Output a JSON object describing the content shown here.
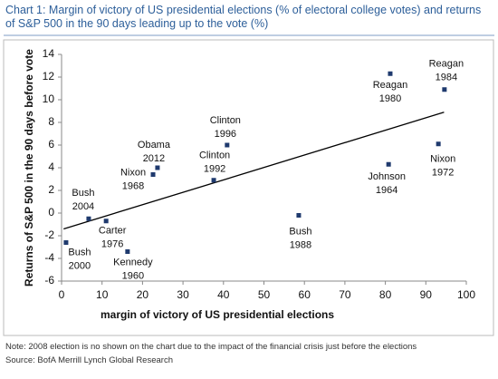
{
  "chart_data": {
    "type": "scatter",
    "title": "Chart 1: Margin of victory of US presidential elections (% of electoral college votes) and returns of S&P 500 in the 90 days leading up to the vote (%)",
    "x_label": "margin of victory of US presidential elections",
    "y_label": "Returns of S&P 500 in the 90 days before vote",
    "names": [
      "Bush",
      "Bush",
      "Carter",
      "Kennedy",
      "Nixon",
      "Obama",
      "Clinton",
      "Clinton",
      "Bush",
      "Johnson",
      "Reagan",
      "Nixon",
      "Reagan"
    ],
    "years": [
      "2000",
      "2004",
      "1976",
      "1960",
      "1968",
      "2012",
      "1992",
      "1996",
      "1988",
      "1964",
      "1980",
      "1972",
      "1984"
    ],
    "x": [
      1.1,
      6.7,
      11,
      16.3,
      22.6,
      23.7,
      37.6,
      40.9,
      58.6,
      80.8,
      81.2,
      93.1,
      94.6
    ],
    "values": [
      -2.6,
      -0.5,
      -0.7,
      -3.4,
      3.4,
      4.0,
      2.9,
      6.0,
      -0.2,
      4.3,
      12.3,
      6.1,
      10.9
    ],
    "color": "#1f3a6e",
    "trendline": {
      "x": [
        0.5,
        94.5
      ],
      "y": [
        -1.4,
        8.9
      ]
    },
    "xlim": [
      0,
      100
    ],
    "xticks": [
      0,
      10,
      20,
      30,
      40,
      50,
      60,
      70,
      80,
      90,
      100
    ],
    "ylim": [
      -6,
      14
    ],
    "yticks": [
      -6,
      -4,
      -2,
      0,
      2,
      4,
      6,
      8,
      10,
      12,
      14
    ],
    "note": "Note: 2008 election is no shown on the chart due to the impact of the financial crisis just before the elections",
    "source": "Source: BofA Merrill Lynch Global Research"
  }
}
